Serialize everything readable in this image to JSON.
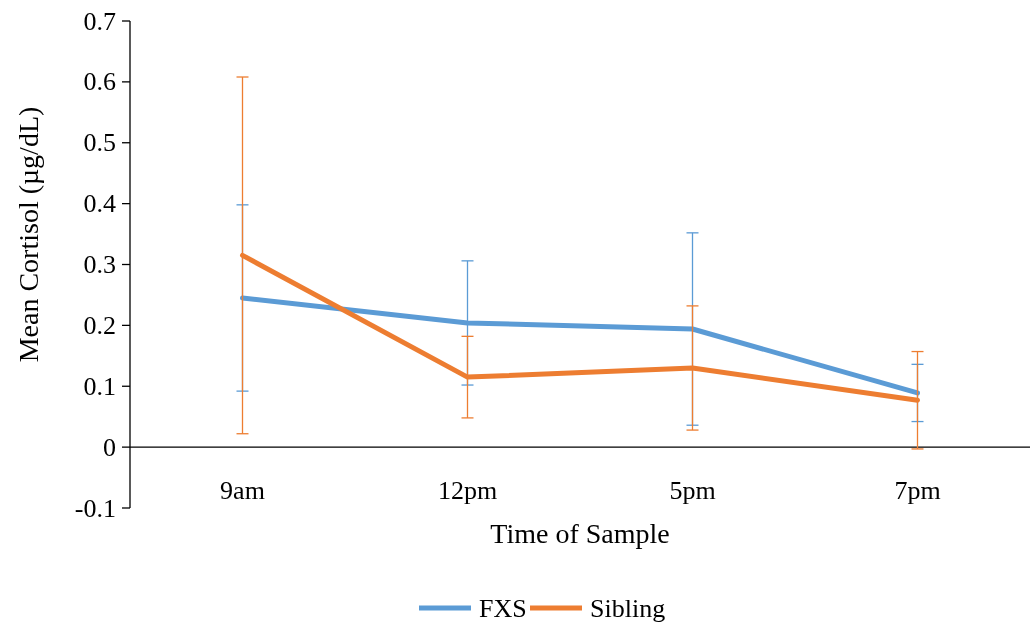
{
  "chart_data": {
    "type": "line",
    "xlabel": "Time of Sample",
    "ylabel": "Mean Cortisol (µg/dL)",
    "categories": [
      "9am",
      "12pm",
      "5pm",
      "7pm"
    ],
    "ylim": [
      -0.1,
      0.7
    ],
    "yticks": [
      -0.1,
      0,
      0.1,
      0.2,
      0.3,
      0.4,
      0.5,
      0.6,
      0.7
    ],
    "grid": false,
    "legend": "bottom",
    "marker": "none",
    "line_style": "solid",
    "series": [
      {
        "name": "FXS",
        "color": "#5b9bd5",
        "values": [
          0.245,
          0.204,
          0.194,
          0.089
        ],
        "errors": [
          0.153,
          0.102,
          0.158,
          0.047
        ]
      },
      {
        "name": "Sibling",
        "color": "#ed7d31",
        "values": [
          0.315,
          0.115,
          0.13,
          0.077
        ],
        "errors": [
          0.293,
          0.067,
          0.102,
          0.08
        ]
      }
    ]
  }
}
